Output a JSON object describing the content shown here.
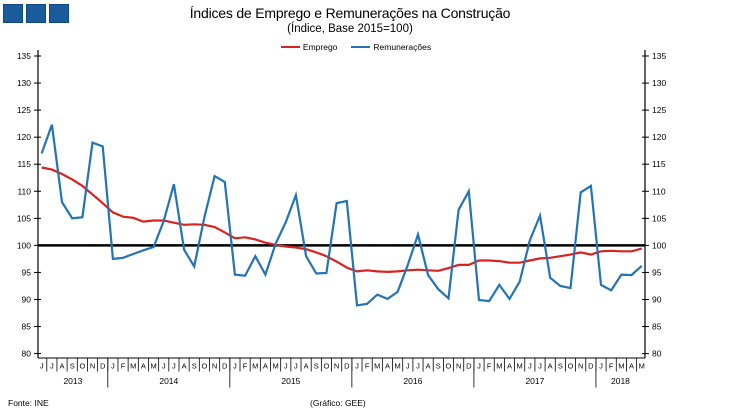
{
  "branding": {
    "square_color": "#1A5B9C",
    "squares": [
      "logo-square-1",
      "logo-square-2",
      "logo-square-3"
    ]
  },
  "footer": {
    "source": "Fonte: INE",
    "credit": "(Gráfico: GEE)"
  },
  "chart_data": {
    "type": "line",
    "title": "Índices de Emprego e Remunerações na Construção",
    "subtitle": "(Índice, Base 2015=100)",
    "legend_position": "top",
    "grid": false,
    "axis_sides": [
      "left",
      "right"
    ],
    "ylim": [
      80,
      135
    ],
    "yticks": [
      80,
      85,
      90,
      95,
      100,
      105,
      110,
      115,
      120,
      125,
      130,
      135
    ],
    "baseline": 100,
    "baseline_color": "#000000",
    "categories": [
      "J",
      "J",
      "A",
      "S",
      "O",
      "N",
      "D",
      "J",
      "F",
      "M",
      "A",
      "M",
      "J",
      "J",
      "A",
      "S",
      "O",
      "N",
      "D",
      "J",
      "F",
      "M",
      "A",
      "M",
      "J",
      "J",
      "A",
      "S",
      "O",
      "N",
      "D",
      "J",
      "F",
      "M",
      "A",
      "M",
      "J",
      "J",
      "A",
      "S",
      "O",
      "N",
      "D",
      "J",
      "F",
      "M",
      "A",
      "M",
      "J",
      "J",
      "A",
      "S",
      "O",
      "N",
      "D",
      "J",
      "F",
      "M",
      "A",
      "M"
    ],
    "year_groups": [
      {
        "label": "2013",
        "count": 7
      },
      {
        "label": "2014",
        "count": 12
      },
      {
        "label": "2015",
        "count": 12
      },
      {
        "label": "2016",
        "count": 12
      },
      {
        "label": "2017",
        "count": 12
      },
      {
        "label": "2018",
        "count": 5
      }
    ],
    "series": [
      {
        "name": "Emprego",
        "color": "#D8231F",
        "values": [
          114.4,
          114.0,
          113.2,
          112.2,
          111.0,
          109.4,
          107.8,
          106.1,
          105.3,
          105.1,
          104.4,
          104.6,
          104.6,
          104.2,
          103.8,
          103.9,
          103.8,
          103.4,
          102.4,
          101.3,
          101.5,
          101.1,
          100.5,
          100.1,
          99.8,
          99.6,
          99.3,
          98.7,
          98.0,
          97.0,
          95.9,
          95.2,
          95.4,
          95.2,
          95.1,
          95.2,
          95.4,
          95.5,
          95.4,
          95.3,
          95.8,
          96.4,
          96.4,
          97.2,
          97.2,
          97.1,
          96.8,
          96.8,
          97.2,
          97.6,
          97.7,
          98.0,
          98.3,
          98.7,
          98.3,
          98.9,
          99.0,
          98.9,
          98.9,
          99.4
        ]
      },
      {
        "name": "Remunerações",
        "color": "#2473B5",
        "values": [
          117.0,
          122.3,
          108.0,
          105.0,
          105.2,
          119.0,
          118.3,
          97.5,
          97.7,
          98.4,
          99.1,
          99.7,
          104.5,
          111.3,
          99.2,
          96.1,
          105.2,
          112.8,
          111.7,
          94.6,
          94.4,
          98.0,
          94.6,
          100.3,
          104.3,
          109.3,
          98.0,
          94.8,
          94.9,
          107.8,
          108.2,
          88.9,
          89.2,
          90.9,
          90.1,
          91.4,
          96.4,
          102.0,
          94.5,
          91.9,
          90.2,
          106.6,
          110.0,
          89.9,
          89.7,
          92.7,
          90.1,
          93.3,
          100.9,
          105.5,
          94.0,
          92.5,
          92.1,
          109.8,
          111.0,
          92.7,
          91.7,
          94.6,
          94.5,
          96.2
        ]
      }
    ]
  }
}
